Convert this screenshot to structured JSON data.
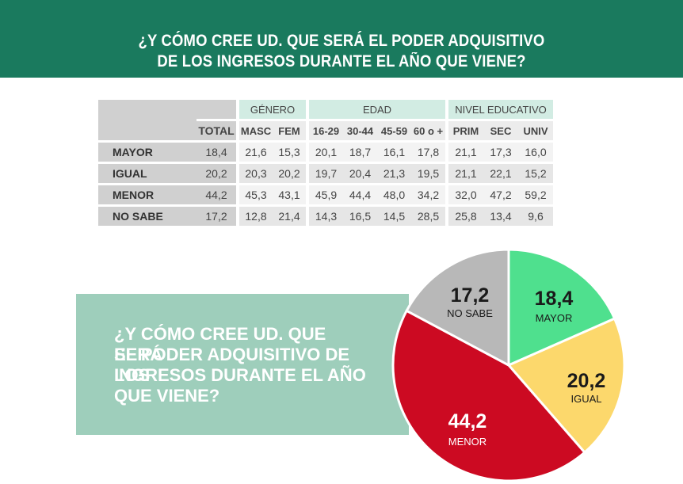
{
  "header": {
    "line1": "¿Y CÓMO CREE UD. QUE SERÁ EL PODER ADQUISITIVO",
    "line2": "DE LOS INGRESOS DURANTE EL AÑO QUE VIENE?"
  },
  "table": {
    "groups": {
      "genero": "GÉNERO",
      "edad": "EDAD",
      "nivel": "NIVEL EDUCATIVO"
    },
    "columns": [
      "TOTAL",
      "MASC",
      "FEM",
      "16-29",
      "30-44",
      "45-59",
      "60 o +",
      "PRIM",
      "SEC",
      "UNIV"
    ],
    "rows": [
      {
        "label": "MAYOR",
        "values": [
          "18,4",
          "21,6",
          "15,3",
          "20,1",
          "18,7",
          "16,1",
          "17,8",
          "21,1",
          "17,3",
          "16,0"
        ]
      },
      {
        "label": "IGUAL",
        "values": [
          "20,2",
          "20,3",
          "20,2",
          "19,7",
          "20,4",
          "21,3",
          "19,5",
          "21,1",
          "22,1",
          "15,2"
        ]
      },
      {
        "label": "MENOR",
        "values": [
          "44,2",
          "45,3",
          "43,1",
          "45,9",
          "44,4",
          "48,0",
          "34,2",
          "32,0",
          "47,2",
          "59,2"
        ]
      },
      {
        "label": "NO SABE",
        "values": [
          "17,2",
          "12,8",
          "21,4",
          "14,3",
          "16,5",
          "14,5",
          "28,5",
          "25,8",
          "13,4",
          "9,6"
        ]
      }
    ]
  },
  "callout": {
    "line1": "¿Y CÓMO CREE UD. QUE SERÁ",
    "line2": "EL PODER ADQUISITIVO DE LOS",
    "line3": "INGRESOS DURANTE EL AÑO",
    "line4": "QUE VIENE?"
  },
  "chart_data": {
    "type": "pie",
    "slices": [
      {
        "label": "MAYOR",
        "value": 18.4,
        "display": "18,4",
        "color": "#4fe08e"
      },
      {
        "label": "IGUAL",
        "value": 20.2,
        "display": "20,2",
        "color": "#fcd86c"
      },
      {
        "label": "MENOR",
        "value": 44.2,
        "display": "44,2",
        "color": "#cc0a22"
      },
      {
        "label": "NO SABE",
        "value": 17.2,
        "display": "17,2",
        "color": "#b8b8b8"
      }
    ]
  },
  "colors": {
    "banner": "#1a7a5e",
    "callout": "#9ecebb"
  }
}
